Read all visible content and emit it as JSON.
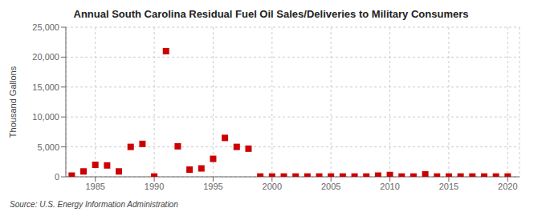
{
  "chart_data": {
    "type": "scatter",
    "title": "Annual South Carolina Residual Fuel Oil Sales/Deliveries to Military Consumers",
    "ylabel": "Thousand Gallons",
    "source": "Source: U.S. Energy Information Administration",
    "x": [
      1983,
      1984,
      1985,
      1986,
      1987,
      1988,
      1989,
      1990,
      1991,
      1992,
      1993,
      1994,
      1995,
      1996,
      1997,
      1998,
      1999,
      2000,
      2001,
      2002,
      2003,
      2004,
      2005,
      2006,
      2007,
      2008,
      2009,
      2010,
      2011,
      2012,
      2013,
      2014,
      2015,
      2016,
      2017,
      2018,
      2019,
      2020
    ],
    "values": [
      200,
      900,
      2000,
      1900,
      900,
      5000,
      5500,
      50,
      21000,
      5100,
      1200,
      1400,
      3000,
      6500,
      5000,
      4700,
      50,
      50,
      50,
      50,
      50,
      50,
      50,
      50,
      50,
      50,
      200,
      300,
      50,
      50,
      400,
      50,
      50,
      50,
      50,
      50,
      50,
      50
    ],
    "color": "#cc0000",
    "marker": "square",
    "xlim": [
      1982.5,
      2021
    ],
    "ylim": [
      0,
      25000
    ],
    "xticks": [
      1985,
      1990,
      1995,
      2000,
      2005,
      2010,
      2015,
      2020
    ],
    "yticks": [
      0,
      {
        "value": 5000,
        "label": "5,000"
      },
      {
        "value": 10000,
        "label": "10,000"
      },
      {
        "value": 15000,
        "label": "15,000"
      },
      {
        "value": 20000,
        "label": "20,000"
      },
      {
        "value": 25000,
        "label": "25,000"
      }
    ],
    "grid": true
  }
}
